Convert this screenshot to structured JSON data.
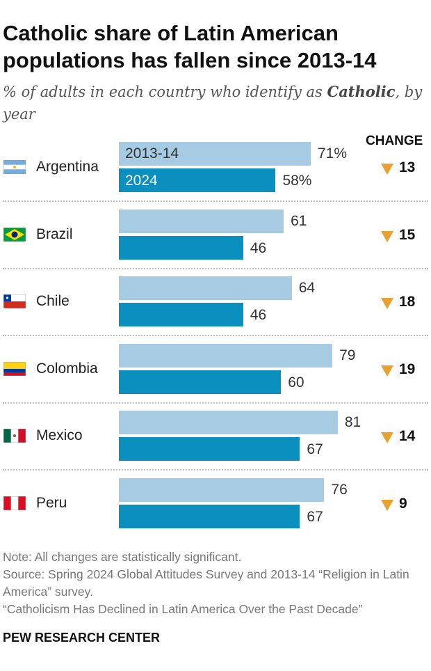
{
  "title": "Catholic share of Latin American populations has fallen since 2013-14",
  "subtitle_pre": "% of adults in each country who identify as ",
  "subtitle_bold": "Catholic",
  "subtitle_post": ", by year",
  "change_header": "CHANGE",
  "colors": {
    "bar_2013": "#a6cbe3",
    "bar_2024": "#0a8fbf",
    "decline_marker": "#e8a030"
  },
  "chart_data": {
    "type": "bar",
    "orientation": "horizontal",
    "categories": [
      "Argentina",
      "Brazil",
      "Chile",
      "Colombia",
      "Mexico",
      "Peru"
    ],
    "series": [
      {
        "name": "2013-14",
        "values": [
          71,
          61,
          64,
          79,
          81,
          76
        ]
      },
      {
        "name": "2024",
        "values": [
          58,
          46,
          46,
          60,
          67,
          67
        ]
      }
    ],
    "change": [
      13,
      15,
      18,
      19,
      14,
      9
    ],
    "change_direction": "decline",
    "value_labels_first_row": [
      "71%",
      "58%"
    ],
    "xlim": [
      0,
      100
    ],
    "grid": false
  },
  "notes": [
    "Note: All changes are statistically significant.",
    "Source: Spring 2024 Global Attitudes Survey and 2013-14 “Religion in Latin America” survey.",
    "“Catholicism Has Declined in Latin America Over the Past Decade”"
  ],
  "brand": "PEW RESEARCH CENTER"
}
